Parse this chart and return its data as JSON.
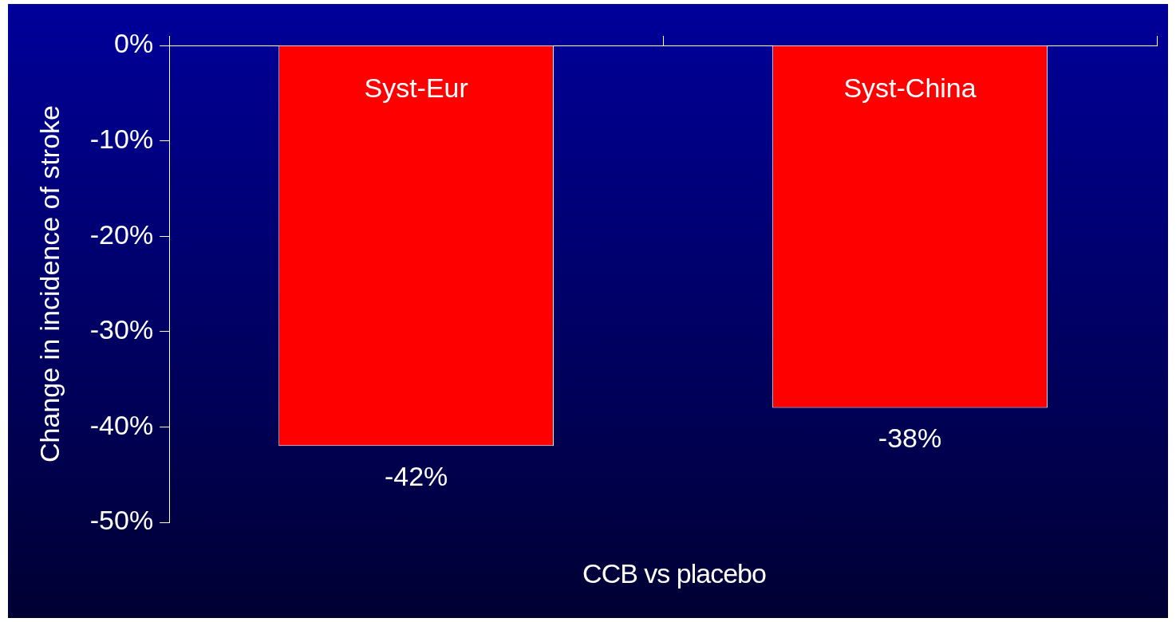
{
  "chart_data": {
    "type": "bar",
    "categories": [
      "Syst-Eur",
      "Syst-China"
    ],
    "values": [
      -42,
      -38
    ],
    "color": "#ff0000",
    "value_labels": [
      "-42%",
      "-38%"
    ],
    "ylabel": "Change in incidence of stroke",
    "xlabel": "CCB vs placebo",
    "ylim": [
      -50,
      0
    ],
    "yticks": [
      {
        "value": -50,
        "label": "-50%"
      },
      {
        "value": -40,
        "label": "-40%"
      },
      {
        "value": -30,
        "label": "-30%"
      },
      {
        "value": -20,
        "label": "-20%"
      },
      {
        "value": -10,
        "label": "-10%"
      },
      {
        "value": 0,
        "label": "0%"
      }
    ],
    "grid": false,
    "legend": false
  }
}
